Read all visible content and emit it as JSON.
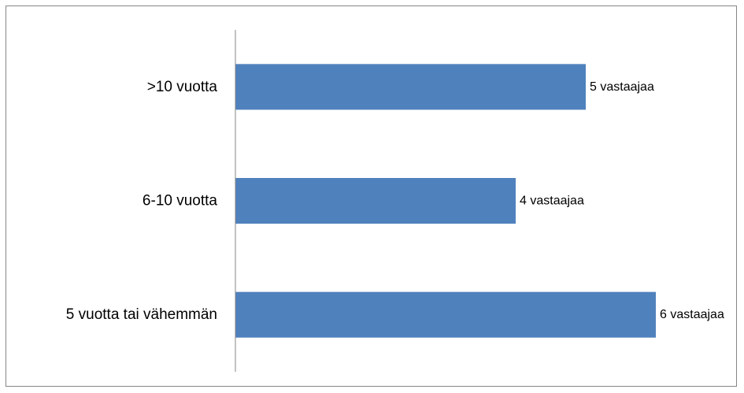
{
  "chart_data": {
    "type": "bar",
    "orientation": "horizontal",
    "categories": [
      ">10 vuotta",
      "6-10 vuotta",
      "5 vuotta tai vähemmän"
    ],
    "values": [
      5,
      4,
      6
    ],
    "data_labels": [
      "5 vastaajaa",
      "4 vastaajaa",
      "6 vastaajaa"
    ],
    "xlim": [
      0,
      6
    ],
    "bar_color": "#4F81BD",
    "axis_color": "#868686",
    "grid": false,
    "legend": "none",
    "title": "",
    "xlabel": "",
    "ylabel": ""
  }
}
